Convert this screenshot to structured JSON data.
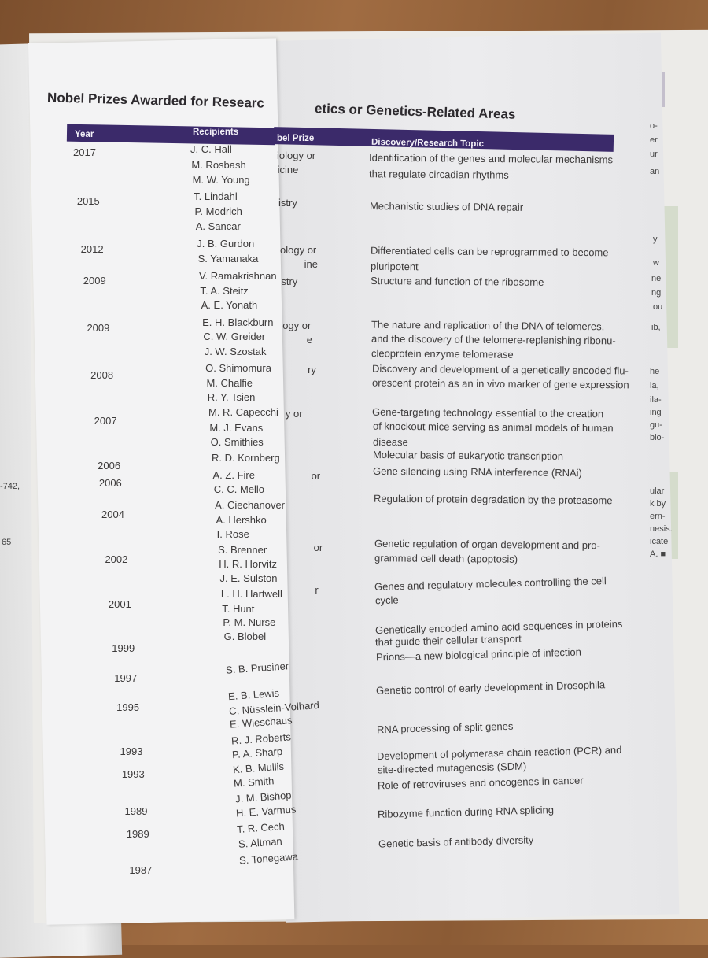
{
  "title_left": "Nobel Prizes Awarded for Researc",
  "title_right": "etics or Genetics-Related Areas",
  "headers": {
    "year": "Year",
    "recipients": "Recipients",
    "prize": "bel Prize",
    "topic": "Discovery/Research Topic"
  },
  "rows": [
    {
      "year": "2017",
      "recipients": [
        "J. C. Hall",
        "M. Rosbash",
        "M. W. Young"
      ],
      "prize": [
        "iology or",
        "icine"
      ],
      "topic": [
        "Identification of the genes and molecular mechanisms",
        "that regulate circadian rhythms"
      ]
    },
    {
      "year": "2015",
      "recipients": [
        "T. Lindahl",
        "P. Modrich",
        "A. Sancar"
      ],
      "prize": [
        "istry"
      ],
      "topic": [
        "Mechanistic studies of DNA repair"
      ]
    },
    {
      "year": "2012",
      "recipients": [
        "J. B. Gurdon",
        "S. Yamanaka"
      ],
      "prize": [
        "ology or",
        "ine"
      ],
      "topic": [
        "Differentiated cells can be reprogrammed to become",
        "pluripotent"
      ]
    },
    {
      "year": "2009",
      "recipients": [
        "V. Ramakrishnan",
        "T. A. Steitz",
        "A. E. Yonath"
      ],
      "prize": [
        "stry"
      ],
      "topic": [
        "Structure and function of the ribosome"
      ]
    },
    {
      "year": "2009",
      "recipients": [
        "E. H. Blackburn",
        "C. W. Greider",
        "J. W. Szostak"
      ],
      "prize": [
        "ogy or",
        "e"
      ],
      "topic": [
        "The nature and replication of the DNA of telomeres,",
        "and the discovery of the telomere-replenishing ribonu-",
        "cleoprotein enzyme telomerase"
      ]
    },
    {
      "year": "2008",
      "recipients": [
        "O. Shimomura",
        "M. Chalfie",
        "R. Y. Tsien"
      ],
      "prize": [
        "ry"
      ],
      "topic": [
        "Discovery and development of a genetically encoded flu-",
        "orescent protein as an in vivo marker of gene expression"
      ]
    },
    {
      "year": "2007",
      "recipients": [
        "M. R. Capecchi",
        "M. J. Evans",
        "O. Smithies"
      ],
      "prize": [
        "y or"
      ],
      "topic": [
        "Gene-targeting technology essential to the creation",
        "of knockout mice serving as animal models of human",
        "disease"
      ]
    },
    {
      "year": "2006",
      "recipients": [
        "R. D. Kornberg"
      ],
      "prize": [],
      "topic": [
        "Molecular basis of eukaryotic transcription"
      ]
    },
    {
      "year": "2006",
      "recipients": [
        "A. Z. Fire",
        "C. C. Mello"
      ],
      "prize": [
        "or"
      ],
      "topic": [
        "Gene silencing using RNA interference (RNAi)"
      ]
    },
    {
      "year": "2004",
      "recipients": [
        "A. Ciechanover",
        "A. Hershko",
        "I. Rose"
      ],
      "prize": [],
      "topic": [
        "Regulation of protein degradation by the proteasome"
      ]
    },
    {
      "year": "2002",
      "recipients": [
        "S. Brenner",
        "H. R. Horvitz",
        "J. E. Sulston"
      ],
      "prize": [
        "or"
      ],
      "topic": [
        "Genetic regulation of organ development and pro-",
        "grammed cell death (apoptosis)"
      ]
    },
    {
      "year": "2001",
      "recipients": [
        "L. H. Hartwell",
        "T. Hunt",
        "P. M. Nurse"
      ],
      "prize": [
        "r"
      ],
      "topic": [
        "Genes and regulatory molecules controlling the cell",
        "cycle"
      ]
    },
    {
      "year": "1999",
      "recipients": [
        "G. Blobel"
      ],
      "prize": [],
      "topic": [
        "Genetically encoded amino acid sequences in proteins",
        "that guide their cellular transport"
      ]
    },
    {
      "year": "1997",
      "recipients": [
        "S. B. Prusiner"
      ],
      "prize": [],
      "topic": [
        "Prions—a new biological principle of infection"
      ]
    },
    {
      "year": "1995",
      "recipients": [
        "E. B. Lewis",
        "C. Nüsslein-Volhard",
        "E. Wieschaus"
      ],
      "prize": [],
      "topic": [
        "Genetic control of early development in Drosophila"
      ]
    },
    {
      "year": "1993",
      "recipients": [
        "R. J. Roberts",
        "P. A. Sharp"
      ],
      "prize": [],
      "topic": [
        "RNA processing of split genes"
      ]
    },
    {
      "year": "1993",
      "recipients": [
        "K. B. Mullis",
        "M. Smith"
      ],
      "prize": [],
      "topic": [
        "Development of polymerase chain reaction (PCR) and",
        "site-directed mutagenesis (SDM)"
      ]
    },
    {
      "year": "1989",
      "recipients": [
        "J. M. Bishop",
        "H. E. Varmus"
      ],
      "prize": [],
      "topic": [
        "Role of retroviruses and oncogenes in cancer"
      ]
    },
    {
      "year": "1989",
      "recipients": [
        "T. R. Cech",
        "S. Altman"
      ],
      "prize": [],
      "topic": [
        "Ribozyme function during RNA splicing"
      ]
    },
    {
      "year": "1987",
      "recipients": [
        "S. Tonegawa"
      ],
      "prize": [],
      "topic": [
        "Genetic basis of antibody diversity"
      ]
    }
  ],
  "left_page_fragments": [
    "-742,",
    "65"
  ],
  "right_edge_fragments": [
    "o-",
    "er",
    "ur",
    "an",
    "y",
    "w",
    "ne",
    "ng",
    "ou",
    "ib,",
    "he",
    "ia,",
    "ila-",
    "ing",
    "gu-",
    "bio-",
    "ular",
    "k by",
    "ern-",
    "nesis.",
    "icate",
    "A. ■"
  ],
  "colors": {
    "header_band": "#3b2a6a",
    "paper": "#f3f3f4",
    "wood": "#8a5a35"
  }
}
